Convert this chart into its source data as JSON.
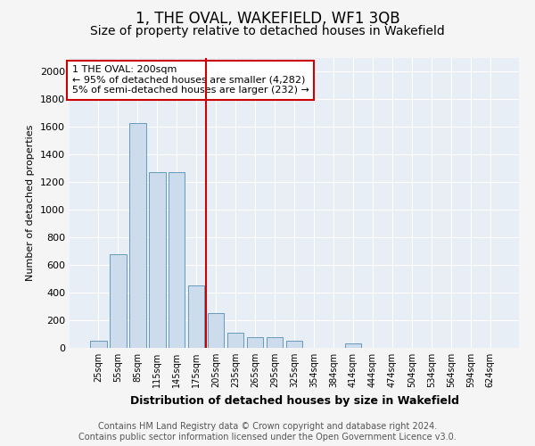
{
  "title": "1, THE OVAL, WAKEFIELD, WF1 3QB",
  "subtitle": "Size of property relative to detached houses in Wakefield",
  "xlabel": "Distribution of detached houses by size in Wakefield",
  "ylabel": "Number of detached properties",
  "bar_color": "#ccdcec",
  "bar_edge_color": "#6699bb",
  "background_color": "#e8eef5",
  "grid_color": "#ffffff",
  "categories": [
    "25sqm",
    "55sqm",
    "85sqm",
    "115sqm",
    "145sqm",
    "175sqm",
    "205sqm",
    "235sqm",
    "265sqm",
    "295sqm",
    "325sqm",
    "354sqm",
    "384sqm",
    "414sqm",
    "444sqm",
    "474sqm",
    "504sqm",
    "534sqm",
    "564sqm",
    "594sqm",
    "624sqm"
  ],
  "values": [
    50,
    680,
    1630,
    1270,
    1270,
    455,
    250,
    110,
    75,
    75,
    50,
    0,
    0,
    30,
    0,
    0,
    0,
    0,
    0,
    0,
    0
  ],
  "ylim": [
    0,
    2100
  ],
  "yticks": [
    0,
    200,
    400,
    600,
    800,
    1000,
    1200,
    1400,
    1600,
    1800,
    2000
  ],
  "vline_index": 6,
  "vline_color": "#cc0000",
  "annotation_title": "1 THE OVAL: 200sqm",
  "annotation_line1": "← 95% of detached houses are smaller (4,282)",
  "annotation_line2": "5% of semi-detached houses are larger (232) →",
  "annotation_box_color": "#cc0000",
  "footer_line1": "Contains HM Land Registry data © Crown copyright and database right 2024.",
  "footer_line2": "Contains public sector information licensed under the Open Government Licence v3.0.",
  "title_fontsize": 12,
  "subtitle_fontsize": 10,
  "annotation_fontsize": 8,
  "footer_fontsize": 7
}
